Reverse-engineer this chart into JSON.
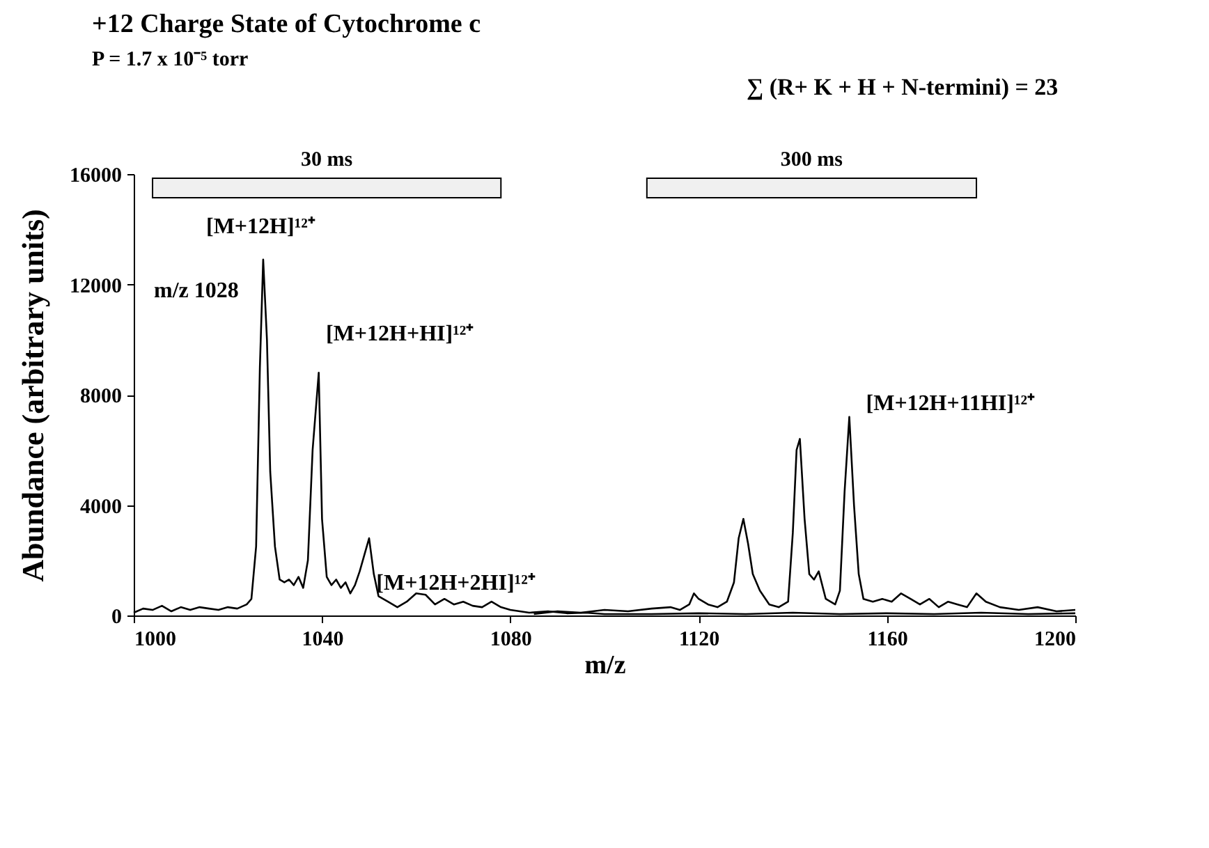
{
  "chart_data": {
    "type": "line",
    "title": "+12 Charge State of Cytochrome c",
    "subtitle": "P = 1.7 x 10⁻⁵ torr",
    "xlabel": "m/z",
    "ylabel": "Abundance (arbitrary units)",
    "xlim": [
      1000,
      1200
    ],
    "xticks": [
      1000,
      1040,
      1080,
      1120,
      1160,
      1200
    ],
    "ylim": [
      0,
      16000
    ],
    "yticks": [
      0,
      4000,
      8000,
      12000,
      16000
    ],
    "grid": false,
    "marker": "none",
    "line_style": "solid",
    "series": [
      {
        "color": "#000000",
        "x": [
          1000,
          1002,
          1004,
          1006,
          1008,
          1010,
          1012,
          1014,
          1016,
          1018,
          1020,
          1022,
          1024,
          1025,
          1026,
          1026.8,
          1027.5,
          1028.3,
          1029,
          1030,
          1031,
          1032,
          1033,
          1034,
          1035,
          1036,
          1037,
          1038,
          1039.3,
          1040,
          1041,
          1042,
          1043,
          1044,
          1045,
          1046,
          1047,
          1048,
          1049,
          1050,
          1051,
          1052,
          1054,
          1056,
          1058,
          1060,
          1062,
          1064,
          1066,
          1068,
          1070,
          1072,
          1074,
          1076,
          1078,
          1080,
          1084,
          1088,
          1092,
          1096,
          1100,
          1110,
          1120,
          1130,
          1140,
          1150,
          1160,
          1170,
          1180,
          1190,
          1200
        ],
        "values": [
          100,
          250,
          200,
          350,
          150,
          300,
          200,
          300,
          250,
          200,
          300,
          250,
          400,
          600,
          2500,
          9000,
          12900,
          10000,
          5200,
          2500,
          1300,
          1200,
          1300,
          1100,
          1400,
          1000,
          2000,
          6000,
          8800,
          3500,
          1400,
          1100,
          1300,
          1000,
          1200,
          800,
          1100,
          1600,
          2200,
          2800,
          1500,
          700,
          500,
          300,
          500,
          800,
          750,
          400,
          600,
          400,
          500,
          350,
          300,
          500,
          300,
          200,
          100,
          150,
          80,
          100,
          50,
          50,
          80,
          50,
          100,
          50,
          80,
          50,
          100,
          50,
          80
        ]
      },
      {
        "color": "#000000",
        "x": [
          1085,
          1090,
          1095,
          1100,
          1105,
          1110,
          1114,
          1116,
          1118,
          1119,
          1120,
          1122,
          1124,
          1126,
          1127.5,
          1128.5,
          1129.5,
          1130.5,
          1131.5,
          1133,
          1135,
          1137,
          1139,
          1140,
          1140.8,
          1141.5,
          1142.5,
          1143.5,
          1144.5,
          1145.5,
          1147,
          1149,
          1150,
          1151,
          1152,
          1153,
          1154,
          1155,
          1157,
          1159,
          1161,
          1163,
          1165,
          1167,
          1169,
          1171,
          1173,
          1175,
          1177,
          1179,
          1181,
          1184,
          1188,
          1192,
          1196,
          1200
        ],
        "values": [
          50,
          150,
          100,
          200,
          150,
          250,
          300,
          200,
          400,
          800,
          600,
          400,
          300,
          500,
          1200,
          2800,
          3500,
          2600,
          1500,
          900,
          400,
          300,
          500,
          3000,
          6000,
          6400,
          3500,
          1500,
          1300,
          1600,
          600,
          400,
          900,
          4500,
          7200,
          4000,
          1500,
          600,
          500,
          600,
          500,
          800,
          600,
          400,
          600,
          300,
          500,
          400,
          300,
          800,
          500,
          300,
          200,
          300,
          150,
          200
        ]
      }
    ],
    "bands": [
      {
        "axis": "x",
        "from": 1004,
        "to": 1078,
        "label": "30 ms"
      },
      {
        "axis": "x",
        "from": 1109,
        "to": 1179,
        "label": "300 ms"
      }
    ],
    "annotations": [
      {
        "text": "[M+12H]¹²⁺",
        "x": 1027.5,
        "y": 12900
      },
      {
        "text": "m/z 1028",
        "x": 1027.5,
        "y": 12900
      },
      {
        "text": "[M+12H+HI]¹²⁺",
        "x": 1039.3,
        "y": 8800
      },
      {
        "text": "[M+12H+2HI]¹²⁺",
        "x": 1050,
        "y": 2800
      },
      {
        "text": "[M+12H+11HI]¹²⁺",
        "x": 1152,
        "y": 7200
      },
      "∑ (R+ K + H + N-termini) = 23"
    ]
  }
}
